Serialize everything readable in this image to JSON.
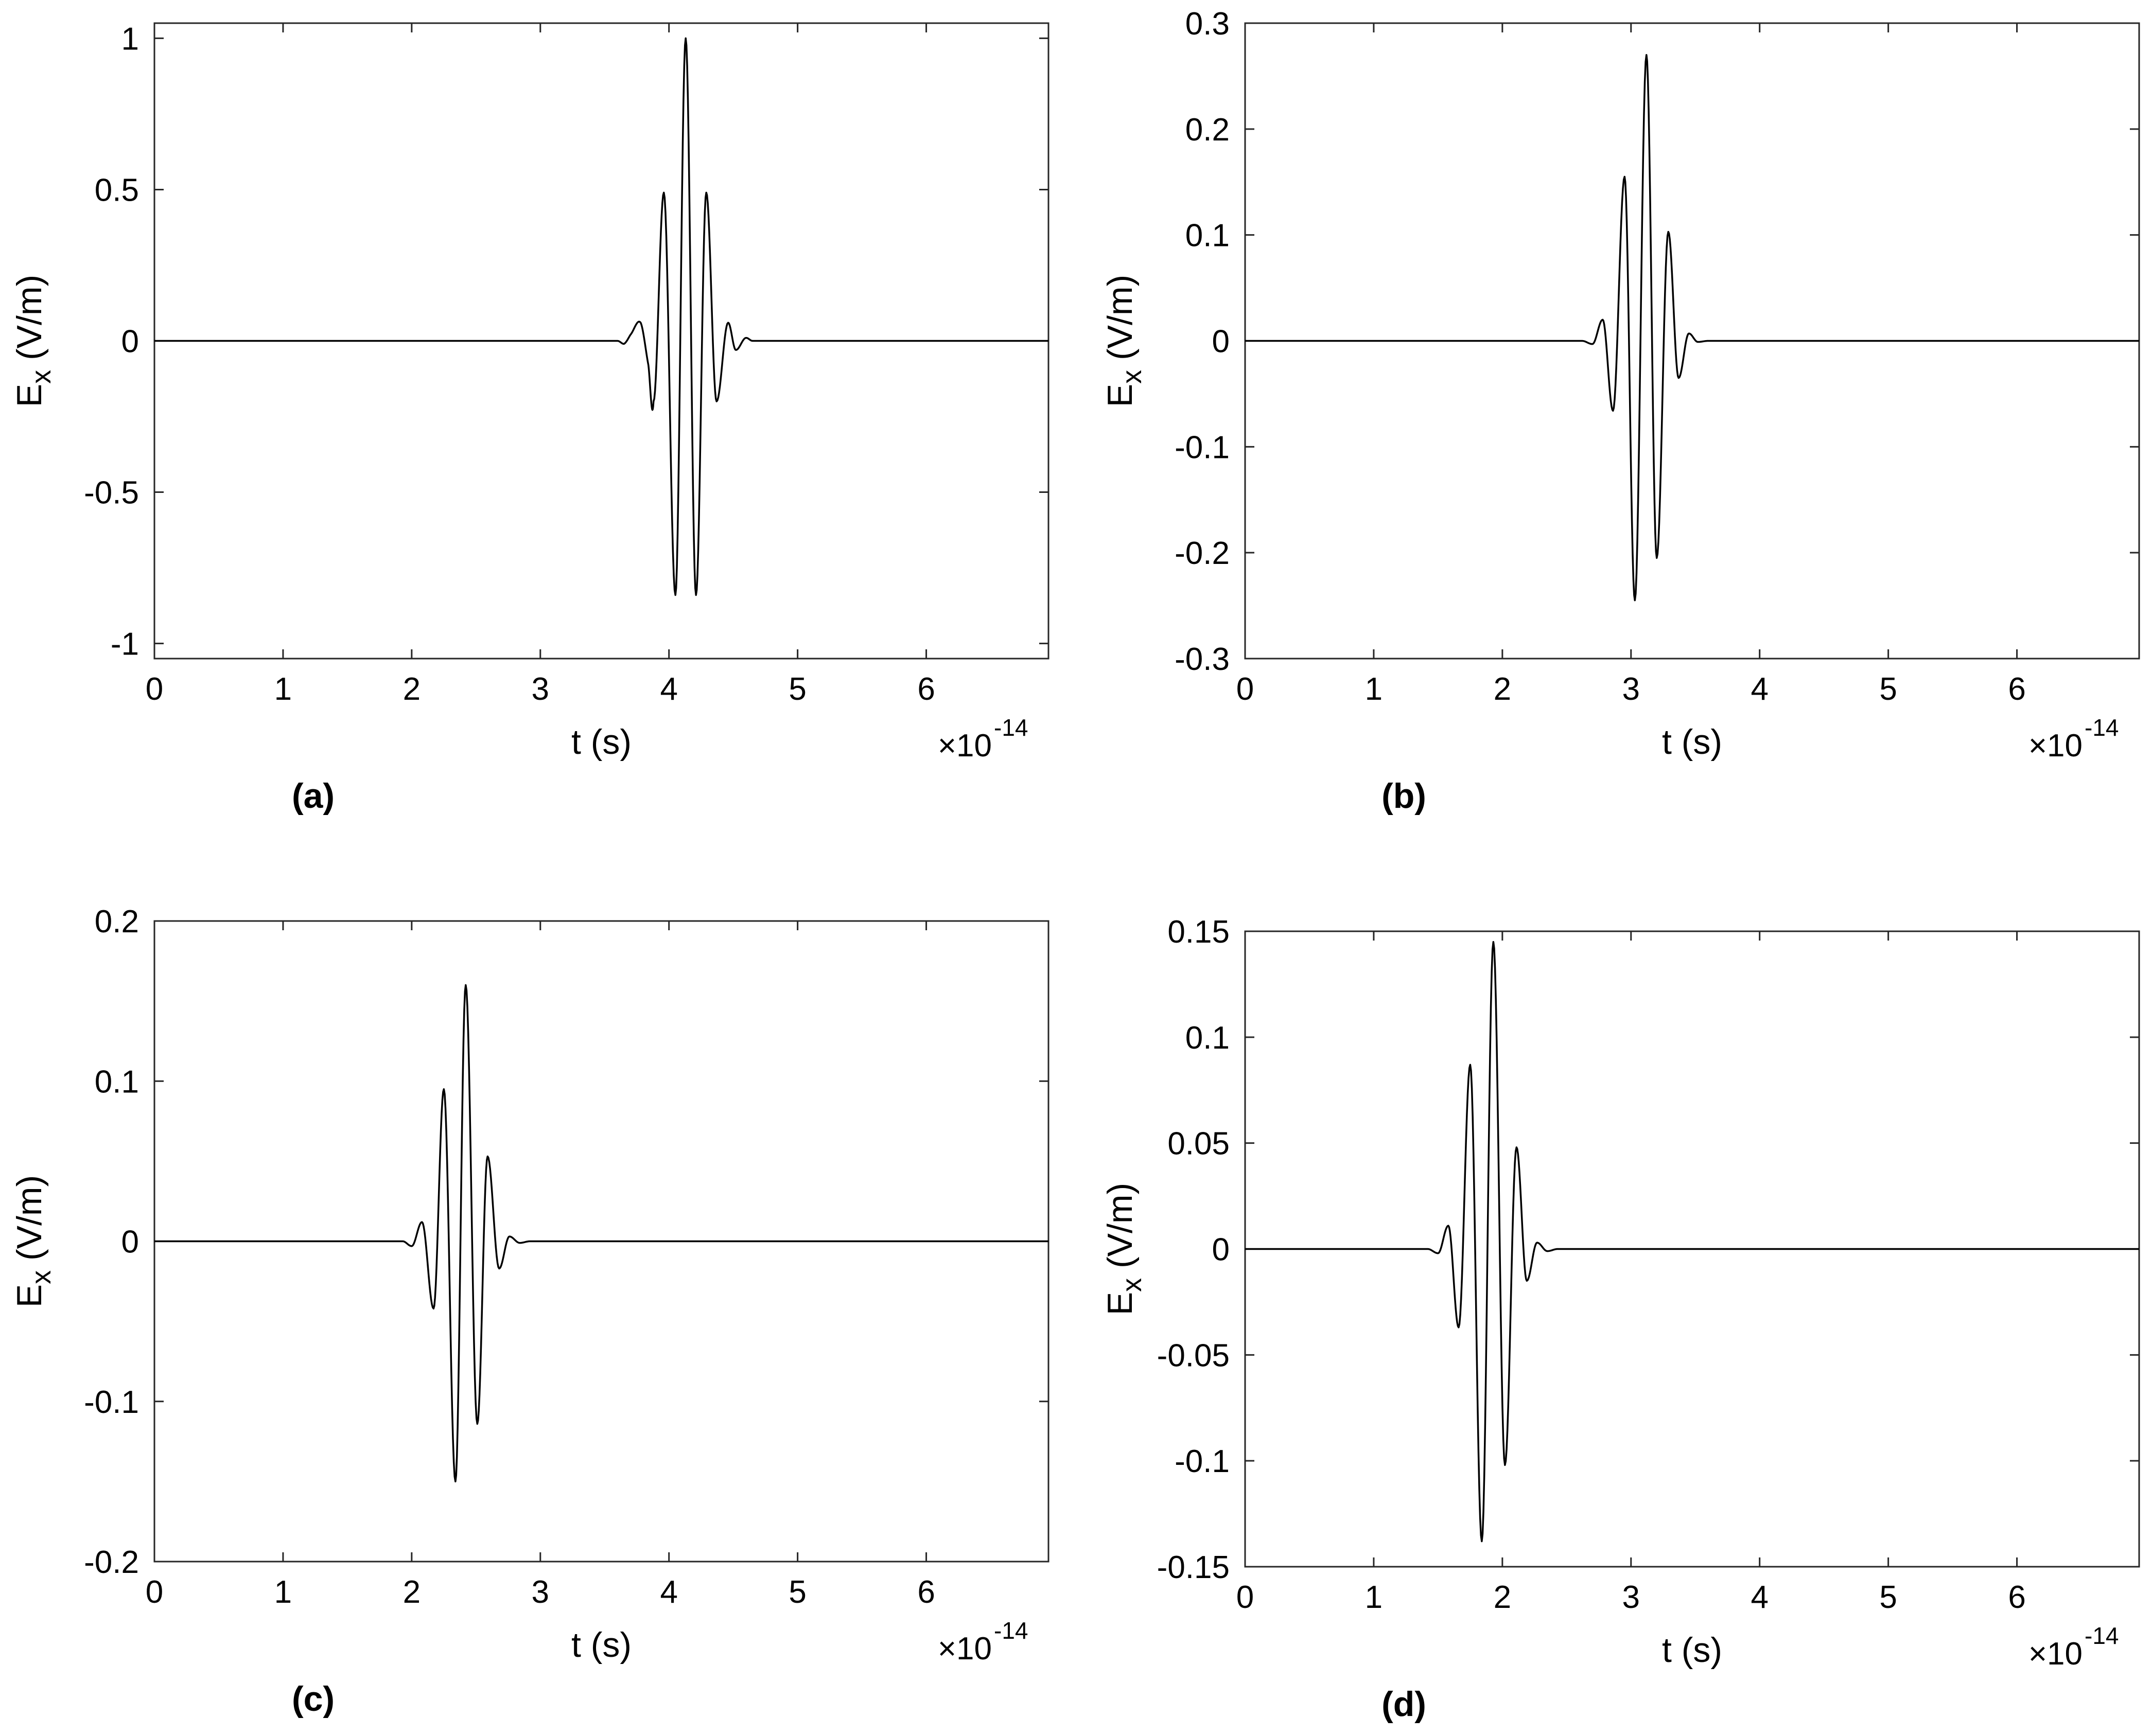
{
  "chart_data": [
    {
      "type": "line",
      "panel_label": "(a)",
      "xlabel": "t (s)",
      "ylabel_main": "E",
      "ylabel_sub": "x",
      "ylabel_unit": " (V/m)",
      "x_multiplier_base": "×10",
      "x_multiplier_exp": "-14",
      "xlim": [
        0,
        6.95
      ],
      "ylim": [
        -1.05,
        1.05
      ],
      "xticks": [
        0,
        1,
        2,
        3,
        4,
        5,
        6
      ],
      "xtick_labels": [
        "0",
        "1",
        "2",
        "3",
        "4",
        "5",
        "6"
      ],
      "yticks": [
        -1,
        -0.5,
        0,
        0.5,
        1
      ],
      "ytick_labels": [
        "-1",
        "-0.5",
        "0",
        "0.5",
        "1"
      ],
      "grid": false,
      "series": [
        {
          "x": [
            0,
            3.55,
            3.6,
            3.65,
            3.7,
            3.78,
            3.84,
            3.88,
            3.96,
            4.05,
            4.13,
            4.21,
            4.29,
            4.37,
            4.46,
            4.52,
            4.6,
            4.65,
            4.7,
            6.95
          ],
          "y": [
            0,
            0,
            0,
            -0.01,
            0.02,
            0.06,
            -0.08,
            -0.2,
            0.49,
            -0.84,
            1.0,
            -0.84,
            0.49,
            -0.2,
            0.06,
            -0.03,
            0.01,
            0,
            0,
            0
          ]
        }
      ]
    },
    {
      "type": "line",
      "panel_label": "(b)",
      "xlabel": "t (s)",
      "ylabel_main": "E",
      "ylabel_sub": "x",
      "ylabel_unit": " (V/m)",
      "x_multiplier_base": "×10",
      "x_multiplier_exp": "-14",
      "xlim": [
        0,
        6.95
      ],
      "ylim": [
        -0.3,
        0.3
      ],
      "xticks": [
        0,
        1,
        2,
        3,
        4,
        5,
        6
      ],
      "xtick_labels": [
        "0",
        "1",
        "2",
        "3",
        "4",
        "5",
        "6"
      ],
      "yticks": [
        -0.3,
        -0.2,
        -0.1,
        0,
        0.1,
        0.2,
        0.3
      ],
      "ytick_labels": [
        "-0.3",
        "-0.2",
        "-0.1",
        "0",
        "0.1",
        "0.2",
        "0.3"
      ],
      "grid": false,
      "series": [
        {
          "x": [
            0,
            2.55,
            2.62,
            2.7,
            2.78,
            2.86,
            2.95,
            3.03,
            3.12,
            3.2,
            3.29,
            3.37,
            3.45,
            3.52,
            3.6,
            6.95
          ],
          "y": [
            0,
            0,
            0,
            -0.003,
            0.02,
            -0.066,
            0.155,
            -0.245,
            0.27,
            -0.205,
            0.103,
            -0.035,
            0.007,
            -0.001,
            0,
            0
          ]
        }
      ]
    },
    {
      "type": "line",
      "panel_label": "(c)",
      "xlabel": "t (s)",
      "ylabel_main": "E",
      "ylabel_sub": "x",
      "ylabel_unit": " (V/m)",
      "x_multiplier_base": "×10",
      "x_multiplier_exp": "-14",
      "xlim": [
        0,
        6.95
      ],
      "ylim": [
        -0.2,
        0.2
      ],
      "xticks": [
        0,
        1,
        2,
        3,
        4,
        5,
        6
      ],
      "xtick_labels": [
        "0",
        "1",
        "2",
        "3",
        "4",
        "5",
        "6"
      ],
      "yticks": [
        -0.2,
        -0.1,
        0,
        0.1,
        0.2
      ],
      "ytick_labels": [
        "-0.2",
        "-0.1",
        "0",
        "0.1",
        "0.2"
      ],
      "grid": false,
      "series": [
        {
          "x": [
            0,
            1.85,
            1.93,
            2.0,
            2.08,
            2.17,
            2.25,
            2.34,
            2.42,
            2.51,
            2.59,
            2.68,
            2.76,
            2.84,
            2.92,
            6.95
          ],
          "y": [
            0,
            0,
            0,
            -0.003,
            0.012,
            -0.042,
            0.095,
            -0.15,
            0.16,
            -0.114,
            0.053,
            -0.017,
            0.003,
            -0.001,
            0,
            0
          ]
        }
      ]
    },
    {
      "type": "line",
      "panel_label": "(d)",
      "xlabel": "t (s)",
      "ylabel_main": "E",
      "ylabel_sub": "x",
      "ylabel_unit": " (V/m)",
      "x_multiplier_base": "×10",
      "x_multiplier_exp": "-14",
      "xlim": [
        0,
        6.95
      ],
      "ylim": [
        -0.15,
        0.15
      ],
      "xticks": [
        0,
        1,
        2,
        3,
        4,
        5,
        6
      ],
      "xtick_labels": [
        "0",
        "1",
        "2",
        "3",
        "4",
        "5",
        "6"
      ],
      "yticks": [
        -0.15,
        -0.1,
        -0.05,
        0,
        0.05,
        0.1,
        0.15
      ],
      "ytick_labels": [
        "-0.15",
        "-0.1",
        "-0.05",
        "0",
        "0.05",
        "0.1",
        "0.15"
      ],
      "grid": false,
      "series": [
        {
          "x": [
            0,
            1.35,
            1.42,
            1.5,
            1.58,
            1.66,
            1.75,
            1.84,
            1.93,
            2.02,
            2.11,
            2.19,
            2.27,
            2.35,
            2.43,
            6.95
          ],
          "y": [
            0,
            0,
            0,
            -0.002,
            0.011,
            -0.037,
            0.087,
            -0.138,
            0.145,
            -0.102,
            0.048,
            -0.015,
            0.003,
            -0.001,
            0,
            0
          ]
        }
      ]
    }
  ]
}
